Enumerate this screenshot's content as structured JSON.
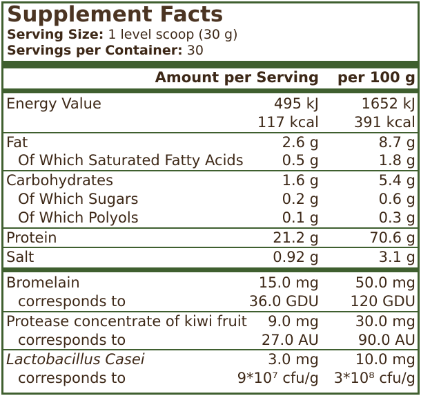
{
  "header": {
    "title": "Supplement Facts",
    "serving_size_label": "Serving Size:",
    "serving_size": "1 level scoop (30 g)",
    "servings_label": "Servings per Container:",
    "servings": "30"
  },
  "table": {
    "columns": [
      "Amount per Serving",
      "per 100 g"
    ],
    "rows": [
      {
        "label": "Energy Value",
        "amount": "495 kJ",
        "per_100g": "1652 kJ"
      },
      {
        "amount": "117 kcal",
        "per_100g": "391 kcal",
        "rule_after": "thin"
      },
      {
        "label": "Fat",
        "amount": "2.6 g",
        "per_100g": "8.7 g"
      },
      {
        "label": "Of Which Saturated Fatty Acids",
        "amount": "0.5 g",
        "per_100g": "1.8 g",
        "indent": true,
        "rule_after": "thin"
      },
      {
        "label": "Carbohydrates",
        "amount": "1.6 g",
        "per_100g": "5.4 g"
      },
      {
        "label": "Of Which Sugars",
        "amount": "0.2 g",
        "per_100g": "0.6 g",
        "indent": true
      },
      {
        "label": "Of Which Polyols",
        "amount": "0.1 g",
        "per_100g": "0.3 g",
        "indent": true,
        "rule_after": "thin"
      },
      {
        "label": "Protein",
        "amount": "21.2 g",
        "per_100g": "70.6 g",
        "rule_after": "thin"
      },
      {
        "label": "Salt",
        "amount": "0.92 g",
        "per_100g": "3.1 g",
        "rule_after": "thick"
      },
      {
        "label": "Bromelain",
        "amount": "15.0 mg",
        "per_100g": "50.0 mg"
      },
      {
        "label": "corresponds to",
        "amount": "36.0 GDU",
        "per_100g": "120 GDU",
        "indent": true,
        "rule_after": "thin"
      },
      {
        "label": "Protease concentrate of kiwi fruit",
        "amount": "9.0 mg",
        "per_100g": "30.0 mg"
      },
      {
        "label": "corresponds to",
        "amount": "27.0 AU",
        "per_100g": "90.0 AU",
        "indent": true,
        "rule_after": "thin"
      },
      {
        "label": "Lactobacillus Casei",
        "amount": "3.0 mg",
        "per_100g": "10.0 mg",
        "italic": true
      },
      {
        "label": "corresponds to",
        "amount": "9*10⁷ cfu/g",
        "per_100g": "3*10⁸ cfu/g",
        "indent": true
      }
    ]
  }
}
